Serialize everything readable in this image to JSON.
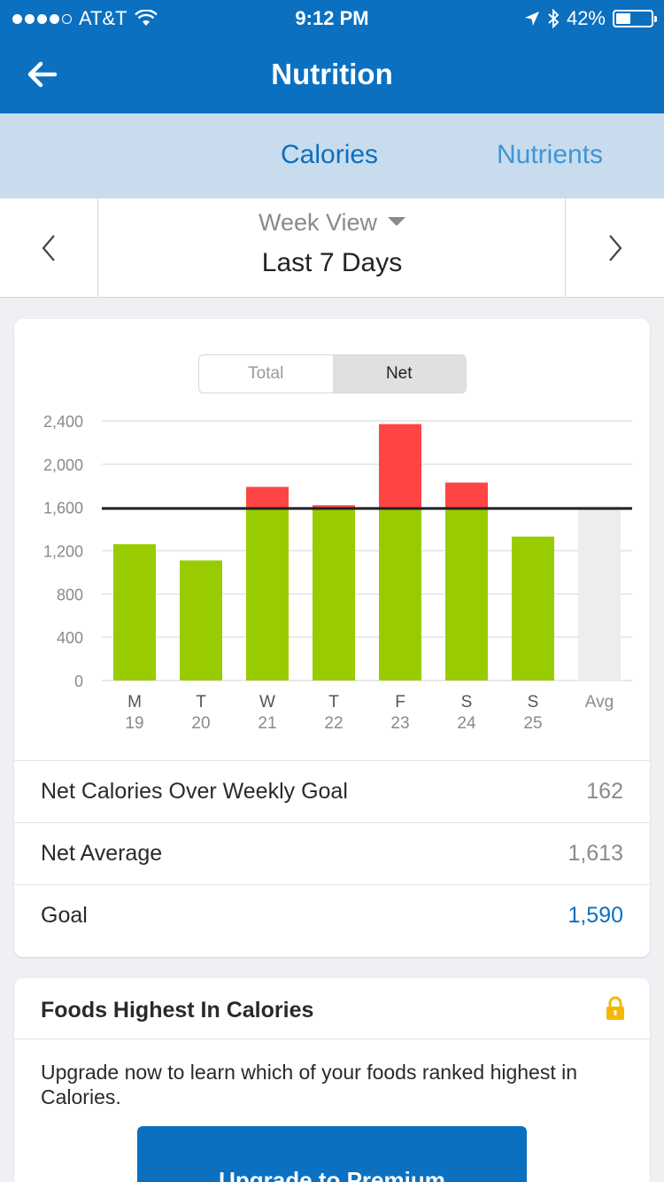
{
  "status_bar": {
    "carrier": "AT&T",
    "time": "9:12 PM",
    "battery": "42%",
    "battery_level": 0.42,
    "signal_bars": 4,
    "signal_max": 5
  },
  "nav": {
    "title": "Nutrition",
    "back_icon": "arrow-left-icon"
  },
  "tabs": [
    {
      "label": "Calories",
      "active": true
    },
    {
      "label": "Nutrients",
      "active": false
    }
  ],
  "date_selector": {
    "view_label": "Week View",
    "range_label": "Last 7 Days"
  },
  "chart_toggle": {
    "total_label": "Total",
    "net_label": "Net",
    "selected": "Net"
  },
  "chart_data": {
    "type": "bar",
    "stacked": true,
    "title": "",
    "categories": [
      {
        "day": "M",
        "date": "19"
      },
      {
        "day": "T",
        "date": "20"
      },
      {
        "day": "W",
        "date": "21"
      },
      {
        "day": "T",
        "date": "22"
      },
      {
        "day": "F",
        "date": "23"
      },
      {
        "day": "S",
        "date": "24"
      },
      {
        "day": "S",
        "date": "25"
      },
      {
        "day": "Avg",
        "date": ""
      }
    ],
    "values": [
      1260,
      1110,
      1790,
      1620,
      2370,
      1830,
      1330,
      1613
    ],
    "goal_line": 1590,
    "ylim": [
      0,
      2400
    ],
    "yticks": [
      {
        "value": 0,
        "label": "0"
      },
      {
        "value": 400,
        "label": "400"
      },
      {
        "value": 800,
        "label": "800"
      },
      {
        "value": 1200,
        "label": "1,200"
      },
      {
        "value": 1600,
        "label": "1,600"
      },
      {
        "value": 2000,
        "label": "2,000"
      },
      {
        "value": 2400,
        "label": "2,400"
      }
    ],
    "grid": true,
    "colors": {
      "under_goal": "#99cc00",
      "over_goal": "#ff4444",
      "average": "#ededf0",
      "goal_line": "#222222"
    }
  },
  "stats": [
    {
      "label": "Net Calories Over Weekly Goal",
      "value": "162"
    },
    {
      "label": "Net Average",
      "value": "1,613"
    },
    {
      "label": "Goal",
      "value": "1,590"
    }
  ],
  "foods": {
    "title": "Foods Highest In Calories",
    "lock_icon": "lock-icon",
    "description": "Upgrade now to learn which of your foods ranked highest in Calories.",
    "button_label": "Upgrade to Premium"
  }
}
